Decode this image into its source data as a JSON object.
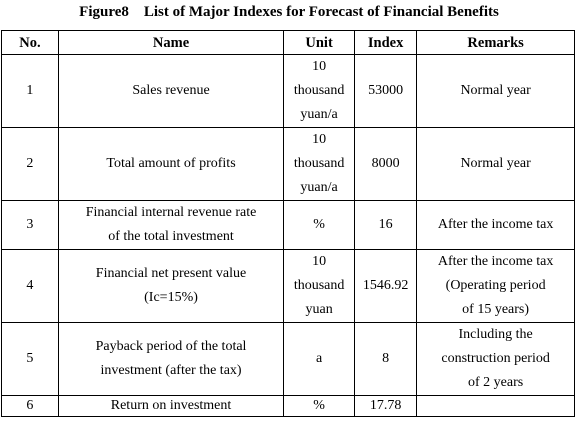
{
  "document": {
    "title": "Figure8    List of Major Indexes for Forecast of Financial Benefits",
    "headers": {
      "no": "No.",
      "name": "Name",
      "unit": "Unit",
      "index": "Index",
      "remarks": "Remarks"
    },
    "rows": [
      {
        "no": "1",
        "name": "Sales revenue",
        "unit": "10\nthousand\nyuan/a",
        "index": "53000",
        "remarks": "Normal year"
      },
      {
        "no": "2",
        "name": "Total amount of profits",
        "unit": "10\nthousand\nyuan/a",
        "index": "8000",
        "remarks": "Normal year"
      },
      {
        "no": "3",
        "name": "Financial internal revenue rate\nof the total investment",
        "unit": "%",
        "index": "16",
        "remarks": "After the income tax"
      },
      {
        "no": "4",
        "name": "Financial net present value\n(Ic=15%)",
        "unit": "10\nthousand\nyuan",
        "index": "1546.92",
        "remarks": "After the income tax\n(Operating period\nof 15 years)"
      },
      {
        "no": "5",
        "name": "Payback period of the total\ninvestment (after the tax)",
        "unit": "a",
        "index": "8",
        "remarks": "Including the\nconstruction period\nof 2 years"
      },
      {
        "no": "6",
        "name": "Return on investment",
        "unit": "%",
        "index": "17.78",
        "remarks": ""
      }
    ]
  }
}
